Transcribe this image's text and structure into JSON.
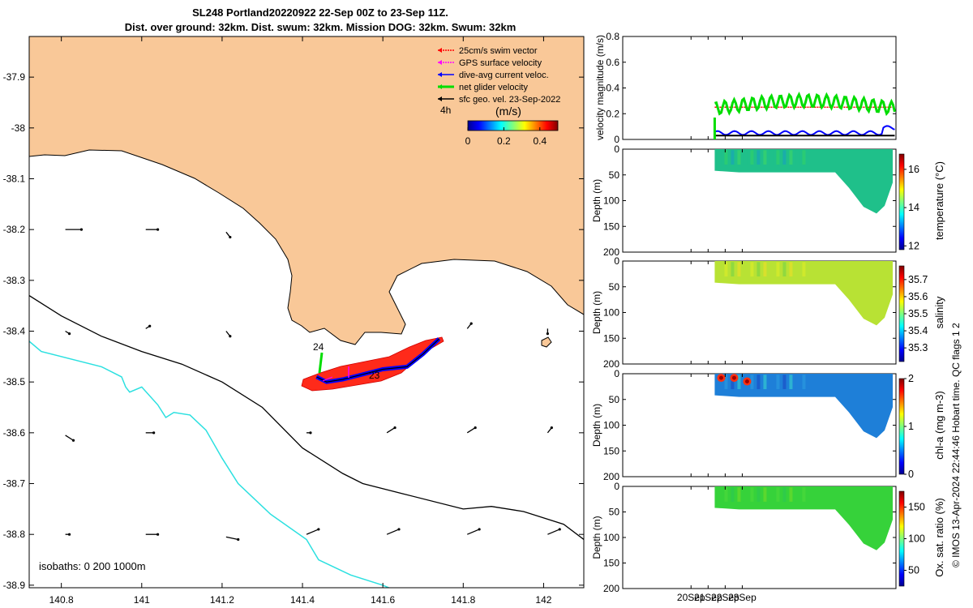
{
  "title_line1": "SL248 Portland20220922 22-Sep 00Z to 23-Sep 11Z.",
  "title_line2": "Dist. over ground: 32km. Dist. swum: 32km. Mission DOG: 32km. Swum: 32km",
  "footer": "© IMOS 13-Apr-2024 22:44:46 Hobart time. QC flags 1  2",
  "map": {
    "xlim": [
      140.72,
      142.1
    ],
    "ylim": [
      -38.905,
      -37.82
    ],
    "xticks": [
      140.8,
      141,
      141.2,
      141.4,
      141.6,
      141.8,
      142
    ],
    "xtick_labels": [
      "140.8",
      "141",
      "141.2",
      "141.4",
      "141.6",
      "141.8",
      "142"
    ],
    "yticks": [
      -37.9,
      -38.0,
      -38.1,
      -38.2,
      -38.3,
      -38.4,
      -38.5,
      -38.6,
      -38.7,
      -38.8,
      -38.9
    ],
    "ytick_labels": [
      "-37.9",
      "-38",
      "-38.1",
      "-38.2",
      "-38.3",
      "-38.4",
      "-38.5",
      "-38.6",
      "-38.7",
      "-38.8",
      "-38.9"
    ],
    "land_color": "#f9c898",
    "isobath_label": "isobaths: 0   200  1000m",
    "legend": [
      {
        "label": "25cm/s swim vector",
        "color": "#ff0000"
      },
      {
        "label": "GPS surface velocity",
        "color": "#ff00ff"
      },
      {
        "label": "dive-avg current veloc.",
        "color": "#0000ff"
      },
      {
        "label": "net glider velocity",
        "color": "#00dd00"
      },
      {
        "label": "sfc geo. vel. 23-Sep-2022",
        "color": "#000000"
      }
    ],
    "legend_extra": "4h",
    "colorbar": {
      "title": "(m/s)",
      "ticks": [
        0,
        0.2,
        0.4
      ],
      "tick_labels": [
        "0",
        "0.2",
        "0.4"
      ],
      "range": [
        0,
        0.5
      ]
    },
    "track_labels": [
      "24",
      "23"
    ],
    "isobath_200": [
      [
        140.72,
        -38.33
      ],
      [
        140.8,
        -38.37
      ],
      [
        140.9,
        -38.41
      ],
      [
        141.0,
        -38.44
      ],
      [
        141.1,
        -38.465
      ],
      [
        141.2,
        -38.5
      ],
      [
        141.3,
        -38.55
      ],
      [
        141.4,
        -38.63
      ],
      [
        141.5,
        -38.68
      ],
      [
        141.55,
        -38.7
      ],
      [
        141.65,
        -38.72
      ],
      [
        141.8,
        -38.75
      ],
      [
        141.87,
        -38.745
      ],
      [
        141.95,
        -38.755
      ],
      [
        142.05,
        -38.78
      ],
      [
        142.1,
        -38.81
      ]
    ],
    "isobath_1000": [
      [
        140.72,
        -38.42
      ],
      [
        140.75,
        -38.44
      ],
      [
        140.9,
        -38.47
      ],
      [
        140.95,
        -38.49
      ],
      [
        140.96,
        -38.51
      ],
      [
        140.97,
        -38.52
      ],
      [
        141.0,
        -38.51
      ],
      [
        141.04,
        -38.545
      ],
      [
        141.06,
        -38.57
      ],
      [
        141.08,
        -38.56
      ],
      [
        141.12,
        -38.565
      ],
      [
        141.16,
        -38.595
      ],
      [
        141.2,
        -38.65
      ],
      [
        141.24,
        -38.7
      ],
      [
        141.32,
        -38.76
      ],
      [
        141.41,
        -38.81
      ],
      [
        141.44,
        -38.85
      ],
      [
        141.52,
        -38.88
      ],
      [
        141.6,
        -38.9
      ],
      [
        141.66,
        -38.92
      ]
    ],
    "geo_arrows": [
      [
        140.81,
        -38.2,
        0.04,
        0.0
      ],
      [
        141.01,
        -38.2,
        0.03,
        0.0
      ],
      [
        141.21,
        -38.205,
        0.01,
        -0.01
      ],
      [
        140.81,
        -38.4,
        0.01,
        -0.005
      ],
      [
        141.01,
        -38.395,
        0.01,
        0.005
      ],
      [
        141.21,
        -38.4,
        0.01,
        -0.01
      ],
      [
        141.81,
        -38.395,
        0.01,
        0.01
      ],
      [
        142.01,
        -38.395,
        0.0,
        -0.01
      ],
      [
        140.81,
        -38.605,
        0.02,
        -0.01
      ],
      [
        141.01,
        -38.6,
        0.02,
        0.0
      ],
      [
        141.41,
        -38.6,
        0.01,
        0.0
      ],
      [
        141.61,
        -38.6,
        0.02,
        0.01
      ],
      [
        141.81,
        -38.6,
        0.02,
        0.01
      ],
      [
        142.01,
        -38.6,
        0.01,
        0.01
      ],
      [
        140.81,
        -38.8,
        0.01,
        0.0
      ],
      [
        141.01,
        -38.8,
        0.03,
        0.0
      ],
      [
        141.21,
        -38.805,
        0.03,
        -0.005
      ],
      [
        141.41,
        -38.8,
        0.03,
        0.01
      ],
      [
        141.61,
        -38.8,
        0.03,
        0.01
      ],
      [
        141.81,
        -38.8,
        0.03,
        0.01
      ],
      [
        142.01,
        -38.8,
        0.03,
        0.01
      ]
    ],
    "track": [
      [
        141.435,
        -38.49
      ],
      [
        141.46,
        -38.5
      ],
      [
        141.5,
        -38.495
      ],
      [
        141.55,
        -38.485
      ],
      [
        141.6,
        -38.475
      ],
      [
        141.66,
        -38.47
      ],
      [
        141.7,
        -38.445
      ],
      [
        141.74,
        -38.415
      ]
    ]
  },
  "side": {
    "xlim": [
      731,
      747
    ],
    "xticks": [
      735,
      736,
      737,
      738
    ],
    "xtick_labels": [
      "20Sep",
      "21Sep",
      "22Sep",
      "23Sep"
    ],
    "velocity": {
      "ylabel": "velocity magnitude (m/s)",
      "ylim": [
        0,
        0.8
      ],
      "yticks": [
        0,
        0.2,
        0.4,
        0.6,
        0.8
      ],
      "ytick_labels": [
        "0",
        "0.2",
        "0.4",
        "0.6",
        "0.8"
      ]
    },
    "sections": [
      {
        "ylabel": "Depth (m)",
        "cblabel": "temperature (°C)",
        "cb_ticks": [
          "12",
          "14",
          "16"
        ],
        "cb_range": [
          11.8,
          16.8
        ],
        "cb_vals": [
          12,
          14,
          16
        ],
        "fill": "#1fc08a"
      },
      {
        "ylabel": "Depth (m)",
        "cblabel": "salinity",
        "cb_ticks": [
          "35.3",
          "35.4",
          "35.5",
          "35.6",
          "35.7"
        ],
        "cb_range": [
          35.22,
          35.78
        ],
        "cb_vals": [
          35.3,
          35.4,
          35.5,
          35.6,
          35.7
        ],
        "fill": "#b8e234"
      },
      {
        "ylabel": "Depth (m)",
        "cblabel": "chl-a (mg m-3)",
        "cb_ticks": [
          "0",
          "1",
          "2"
        ],
        "cb_range": [
          0,
          2
        ],
        "cb_vals": [
          0,
          1,
          2
        ],
        "fill": "#1e7fd8"
      },
      {
        "ylabel": "Depth (m)",
        "cblabel": "Ox. sat. ratio (%)",
        "cb_ticks": [
          "50",
          "100",
          "150"
        ],
        "cb_range": [
          25,
          175
        ],
        "cb_vals": [
          50,
          100,
          150
        ],
        "fill": "#36d23a"
      }
    ],
    "depth_ticks": [
      0,
      50,
      100,
      150,
      200
    ],
    "depth_tick_labels": [
      "0",
      "50",
      "100",
      "150",
      "200"
    ],
    "depth_max": 200
  }
}
